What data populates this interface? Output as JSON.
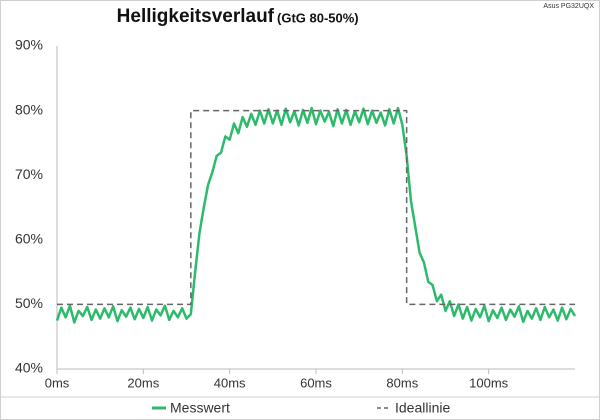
{
  "chart_data": {
    "type": "line",
    "title": "Helligkeitsverlauf",
    "subtitle": "(GtG 80-50%)",
    "annotation": "Asus PG32UQX",
    "xlim": [
      0,
      120
    ],
    "xticks": [
      {
        "value": 0,
        "label": "0ms"
      },
      {
        "value": 20,
        "label": "20ms"
      },
      {
        "value": 40,
        "label": "40ms"
      },
      {
        "value": 60,
        "label": "60ms"
      },
      {
        "value": 80,
        "label": "80ms"
      },
      {
        "value": 100,
        "label": "100ms"
      }
    ],
    "ylim": [
      40,
      90
    ],
    "yticks": [
      {
        "value": 40,
        "label": "40%"
      },
      {
        "value": 50,
        "label": "50%"
      },
      {
        "value": 60,
        "label": "60%"
      },
      {
        "value": 70,
        "label": "70%"
      },
      {
        "value": 80,
        "label": "80%"
      },
      {
        "value": 90,
        "label": "90%"
      }
    ],
    "grid": false,
    "legend": "bottom",
    "series": [
      {
        "name": "Messwert",
        "color": "#2dbb6b",
        "dash": false,
        "x": [
          0,
          1,
          2,
          3,
          4,
          5,
          6,
          7,
          8,
          9,
          10,
          11,
          12,
          13,
          14,
          15,
          16,
          17,
          18,
          19,
          20,
          21,
          22,
          23,
          24,
          25,
          26,
          27,
          28,
          29,
          30,
          31,
          32,
          33,
          34,
          35,
          36,
          37,
          38,
          39,
          40,
          41,
          42,
          43,
          44,
          45,
          46,
          47,
          48,
          49,
          50,
          51,
          52,
          53,
          54,
          55,
          56,
          57,
          58,
          59,
          60,
          61,
          62,
          63,
          64,
          65,
          66,
          67,
          68,
          69,
          70,
          71,
          72,
          73,
          74,
          75,
          76,
          77,
          78,
          79,
          80,
          81,
          82,
          83,
          84,
          85,
          86,
          87,
          88,
          89,
          90,
          91,
          92,
          93,
          94,
          95,
          96,
          97,
          98,
          99,
          100,
          101,
          102,
          103,
          104,
          105,
          106,
          107,
          108,
          109,
          110,
          111,
          112,
          113,
          114,
          115,
          116,
          117,
          118,
          119,
          120
        ],
        "values": [
          47.5,
          49.5,
          48,
          49.8,
          47.2,
          49,
          48.2,
          49.6,
          47.6,
          49.2,
          47.8,
          49.4,
          48,
          49.7,
          47.4,
          49.1,
          48.1,
          49.5,
          47.7,
          49.3,
          47.9,
          49.6,
          47.5,
          49.2,
          48.3,
          49.8,
          47.6,
          49,
          48,
          49.4,
          47.8,
          48.5,
          55,
          61,
          65,
          68.5,
          70.5,
          73,
          73.5,
          76,
          75.5,
          78,
          76.5,
          79,
          77.5,
          79.5,
          77.8,
          80,
          78,
          80.2,
          78,
          80,
          77.8,
          80.3,
          78.2,
          79.9,
          77.7,
          80.1,
          78.1,
          80.4,
          77.9,
          80,
          78.3,
          79.8,
          77.6,
          80.2,
          78,
          80.1,
          77.8,
          79.9,
          78.2,
          80.3,
          77.9,
          80,
          78.1,
          79.7,
          77.7,
          80.2,
          78,
          80.4,
          77.8,
          73,
          66,
          62,
          58,
          56.5,
          53.5,
          53,
          50.5,
          51.5,
          49,
          50.5,
          48.2,
          50,
          47.8,
          49.6,
          47.5,
          49.3,
          48,
          49.8,
          47.4,
          49.1,
          47.9,
          49.5,
          47.6,
          49.2,
          48.1,
          49.7,
          47.3,
          49,
          47.8,
          49.4,
          47.6,
          49.6,
          48,
          49.2,
          47.5,
          49.5,
          47.7,
          49.3,
          48.2
        ]
      },
      {
        "name": "Ideallinie",
        "color": "#666666",
        "dash": true,
        "x": [
          0,
          31,
          31,
          81,
          81,
          120
        ],
        "values": [
          50,
          50,
          80,
          80,
          50,
          50
        ]
      }
    ]
  }
}
